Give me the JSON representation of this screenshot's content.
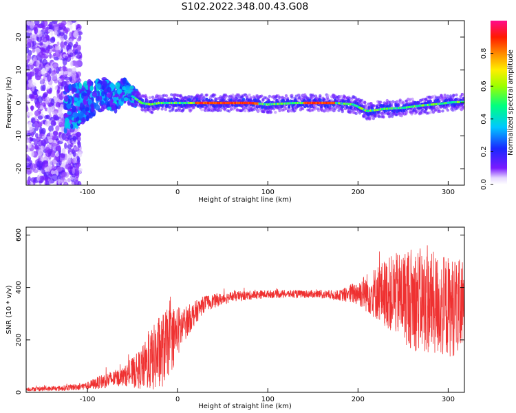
{
  "title": "S102.2022.348.00.43.G08",
  "chart_data": [
    {
      "type": "heatmap",
      "xlabel": "Height of straight line (km)",
      "ylabel": "Frequency (Hz)",
      "xlim": [
        -168,
        318
      ],
      "ylim": [
        -25,
        25
      ],
      "xticks": [
        -100,
        0,
        100,
        200,
        300
      ],
      "yticks": [
        -20,
        -10,
        0,
        10,
        20
      ],
      "colorbar": {
        "label": "Normalized spectral amplitude",
        "range": [
          0,
          1
        ],
        "ticks": [
          0.0,
          0.2,
          0.4,
          0.6,
          0.8
        ],
        "colormap": "rainbow (purple-blue-cyan-green-yellow-orange-red-magenta)"
      },
      "ridge": [
        {
          "x": -120,
          "y": -1.5
        },
        {
          "x": -110,
          "y": -0.5
        },
        {
          "x": -100,
          "y": 0.5
        },
        {
          "x": -90,
          "y": 2
        },
        {
          "x": -80,
          "y": 3
        },
        {
          "x": -70,
          "y": 1
        },
        {
          "x": -60,
          "y": 4
        },
        {
          "x": -50,
          "y": 2
        },
        {
          "x": -40,
          "y": 0
        },
        {
          "x": -30,
          "y": -0.5
        },
        {
          "x": -20,
          "y": 0
        },
        {
          "x": 0,
          "y": 0
        },
        {
          "x": 20,
          "y": 0
        },
        {
          "x": 50,
          "y": 0
        },
        {
          "x": 80,
          "y": 0
        },
        {
          "x": 100,
          "y": -0.5
        },
        {
          "x": 130,
          "y": 0
        },
        {
          "x": 150,
          "y": 0
        },
        {
          "x": 175,
          "y": 0
        },
        {
          "x": 195,
          "y": -0.5
        },
        {
          "x": 210,
          "y": -2.5
        },
        {
          "x": 230,
          "y": -1.8
        },
        {
          "x": 250,
          "y": -1.5
        },
        {
          "x": 270,
          "y": -0.8
        },
        {
          "x": 290,
          "y": -0.3
        },
        {
          "x": 305,
          "y": 0.2
        },
        {
          "x": 318,
          "y": 0.3
        }
      ],
      "peak_amplitude_segments": [
        [
          20,
          90
        ],
        [
          140,
          175
        ]
      ]
    },
    {
      "type": "line",
      "xlabel": "Height of straight line (km)",
      "ylabel": "SNR (10 * v/v)",
      "xlim": [
        -168,
        318
      ],
      "ylim": [
        0,
        630
      ],
      "xticks": [
        -100,
        0,
        100,
        200,
        300
      ],
      "yticks": [
        0,
        200,
        400,
        600
      ],
      "color": "#ef3131",
      "envelope": [
        {
          "x": -168,
          "mean": 12,
          "spread": 8
        },
        {
          "x": -130,
          "mean": 15,
          "spread": 10
        },
        {
          "x": -100,
          "mean": 25,
          "spread": 15
        },
        {
          "x": -80,
          "mean": 45,
          "spread": 30
        },
        {
          "x": -60,
          "mean": 60,
          "spread": 35
        },
        {
          "x": -40,
          "mean": 90,
          "spread": 80
        },
        {
          "x": -20,
          "mean": 150,
          "spread": 150
        },
        {
          "x": -5,
          "mean": 210,
          "spread": 120
        },
        {
          "x": 10,
          "mean": 270,
          "spread": 60
        },
        {
          "x": 30,
          "mean": 340,
          "spread": 30
        },
        {
          "x": 60,
          "mean": 365,
          "spread": 20
        },
        {
          "x": 100,
          "mean": 375,
          "spread": 15
        },
        {
          "x": 150,
          "mean": 375,
          "spread": 15
        },
        {
          "x": 180,
          "mean": 370,
          "spread": 20
        },
        {
          "x": 200,
          "mean": 380,
          "spread": 50
        },
        {
          "x": 230,
          "mean": 380,
          "spread": 130
        },
        {
          "x": 260,
          "mean": 360,
          "spread": 200
        },
        {
          "x": 290,
          "mean": 330,
          "spread": 200
        },
        {
          "x": 318,
          "mean": 320,
          "spread": 180
        }
      ]
    }
  ]
}
